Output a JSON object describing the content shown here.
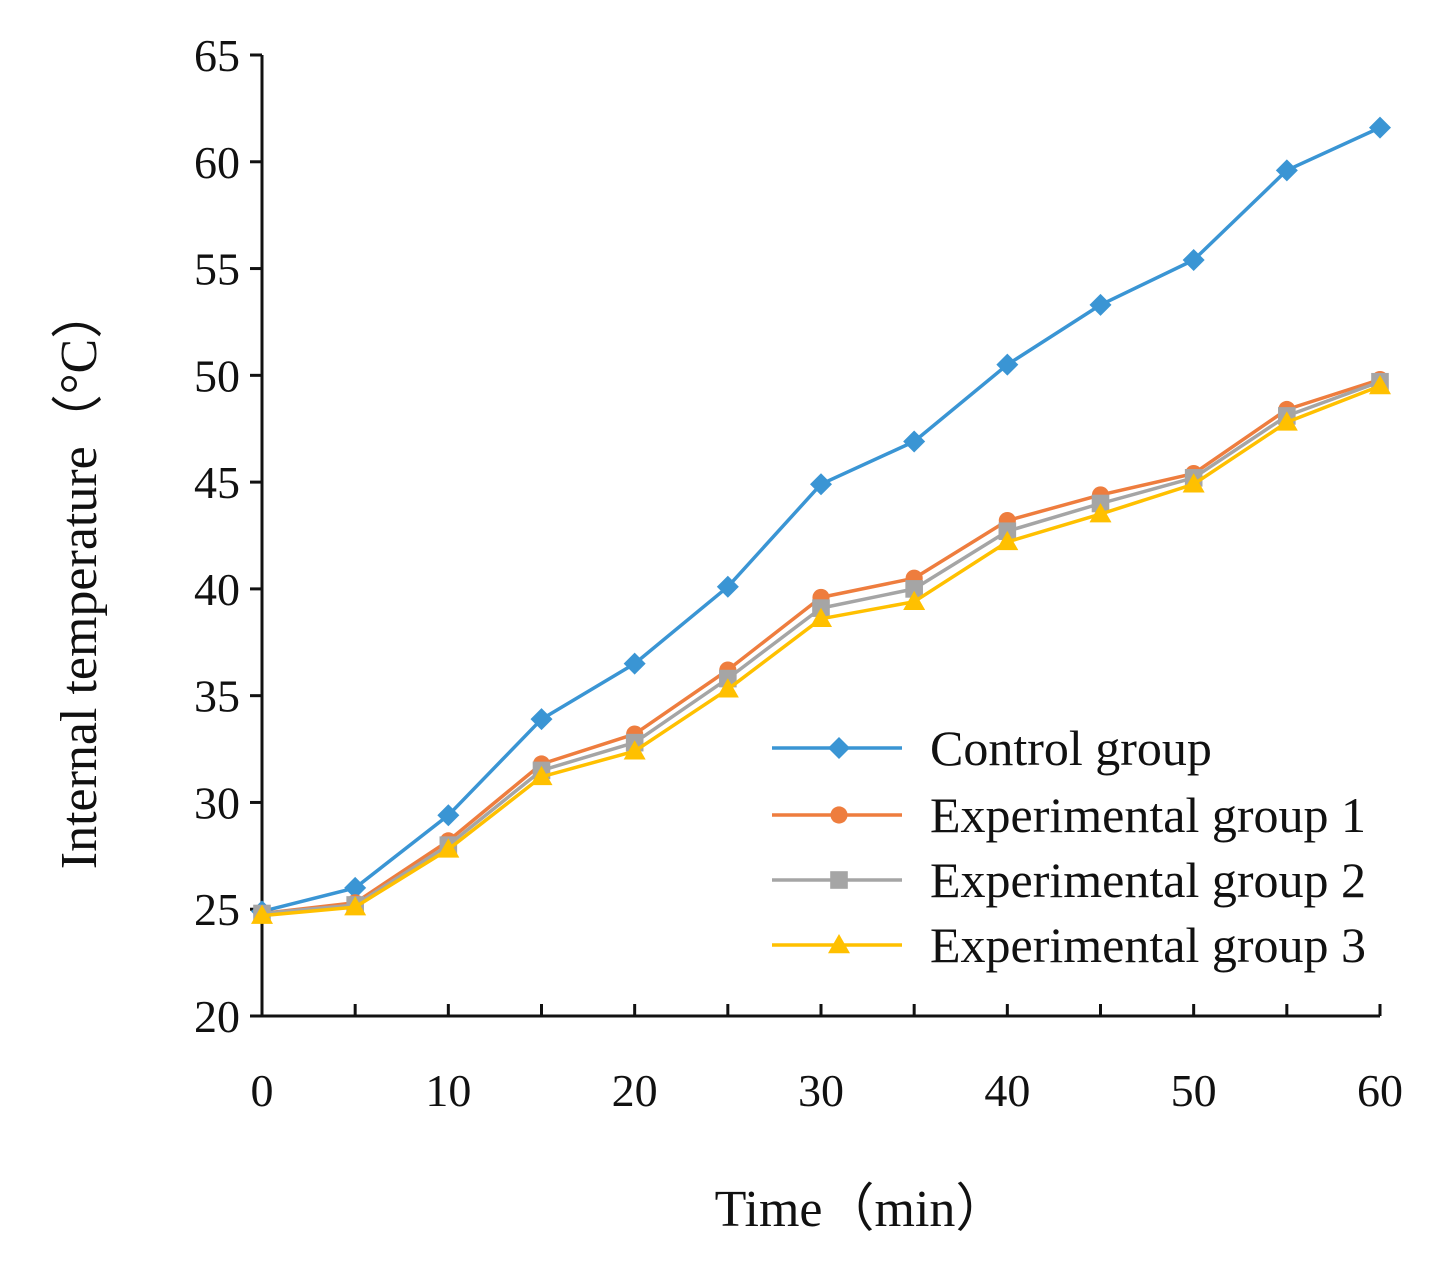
{
  "chart_data": {
    "type": "line",
    "xlabel": "Time（min）",
    "ylabel": "Internal temperature（°C）",
    "x": [
      0,
      5,
      10,
      15,
      20,
      25,
      30,
      35,
      40,
      45,
      50,
      55,
      60
    ],
    "xticks": [
      0,
      10,
      20,
      30,
      40,
      50,
      60
    ],
    "xlim": [
      0,
      60
    ],
    "yticks": [
      20,
      25,
      30,
      35,
      40,
      45,
      50,
      55,
      60,
      65
    ],
    "ylim": [
      20,
      65
    ],
    "grid": false,
    "legend_position": "bottom-right",
    "series": [
      {
        "name": "Control group",
        "color": "#3A95D4",
        "marker": "diamond",
        "values": [
          24.9,
          26.0,
          29.4,
          33.9,
          36.5,
          40.1,
          44.9,
          46.9,
          50.5,
          53.3,
          55.4,
          59.6,
          61.6
        ]
      },
      {
        "name": "Experimental group 1",
        "color": "#EE7D3E",
        "marker": "circle",
        "values": [
          24.8,
          25.3,
          28.2,
          31.8,
          33.2,
          36.2,
          39.6,
          40.5,
          43.2,
          44.4,
          45.4,
          48.4,
          49.8
        ]
      },
      {
        "name": "Experimental group 2",
        "color": "#A5A5A5",
        "marker": "square",
        "values": [
          24.8,
          25.2,
          28.0,
          31.5,
          32.8,
          35.8,
          39.1,
          40.0,
          42.7,
          44.0,
          45.2,
          48.1,
          49.7
        ]
      },
      {
        "name": "Experimental group 3",
        "color": "#FFC000",
        "marker": "triangle",
        "values": [
          24.7,
          25.1,
          27.8,
          31.2,
          32.4,
          35.3,
          38.6,
          39.4,
          42.2,
          43.5,
          44.9,
          47.8,
          49.5
        ]
      }
    ]
  }
}
